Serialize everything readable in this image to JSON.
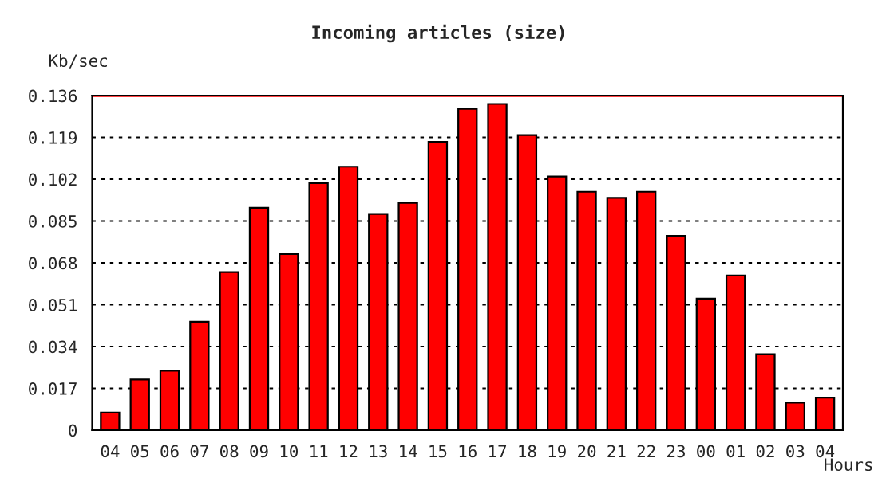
{
  "chart_data": {
    "type": "bar",
    "title": "Incoming articles (size)",
    "ylabel": "Kb/sec",
    "xlabel": "Hours",
    "categories": [
      "04",
      "05",
      "06",
      "07",
      "08",
      "09",
      "10",
      "11",
      "12",
      "13",
      "14",
      "15",
      "16",
      "17",
      "18",
      "19",
      "20",
      "21",
      "22",
      "23",
      "00",
      "01",
      "02",
      "03",
      "04"
    ],
    "values": [
      0.0072,
      0.0206,
      0.0242,
      0.0441,
      0.0642,
      0.0904,
      0.0716,
      0.1004,
      0.1071,
      0.0879,
      0.0924,
      0.1172,
      0.1306,
      0.1326,
      0.1199,
      0.1031,
      0.0969,
      0.0944,
      0.0969,
      0.079,
      0.0535,
      0.0629,
      0.0309,
      0.0112,
      0.0132
    ],
    "color": "#ff0000",
    "ylim": [
      0,
      0.136
    ],
    "yticks": [
      0,
      0.017,
      0.034,
      0.051,
      0.068,
      0.085,
      0.102,
      0.119,
      0.136
    ],
    "grid": "y",
    "ref_lines": [
      {
        "axis": "y",
        "value": 0.136,
        "color": "#ff0000"
      }
    ]
  }
}
